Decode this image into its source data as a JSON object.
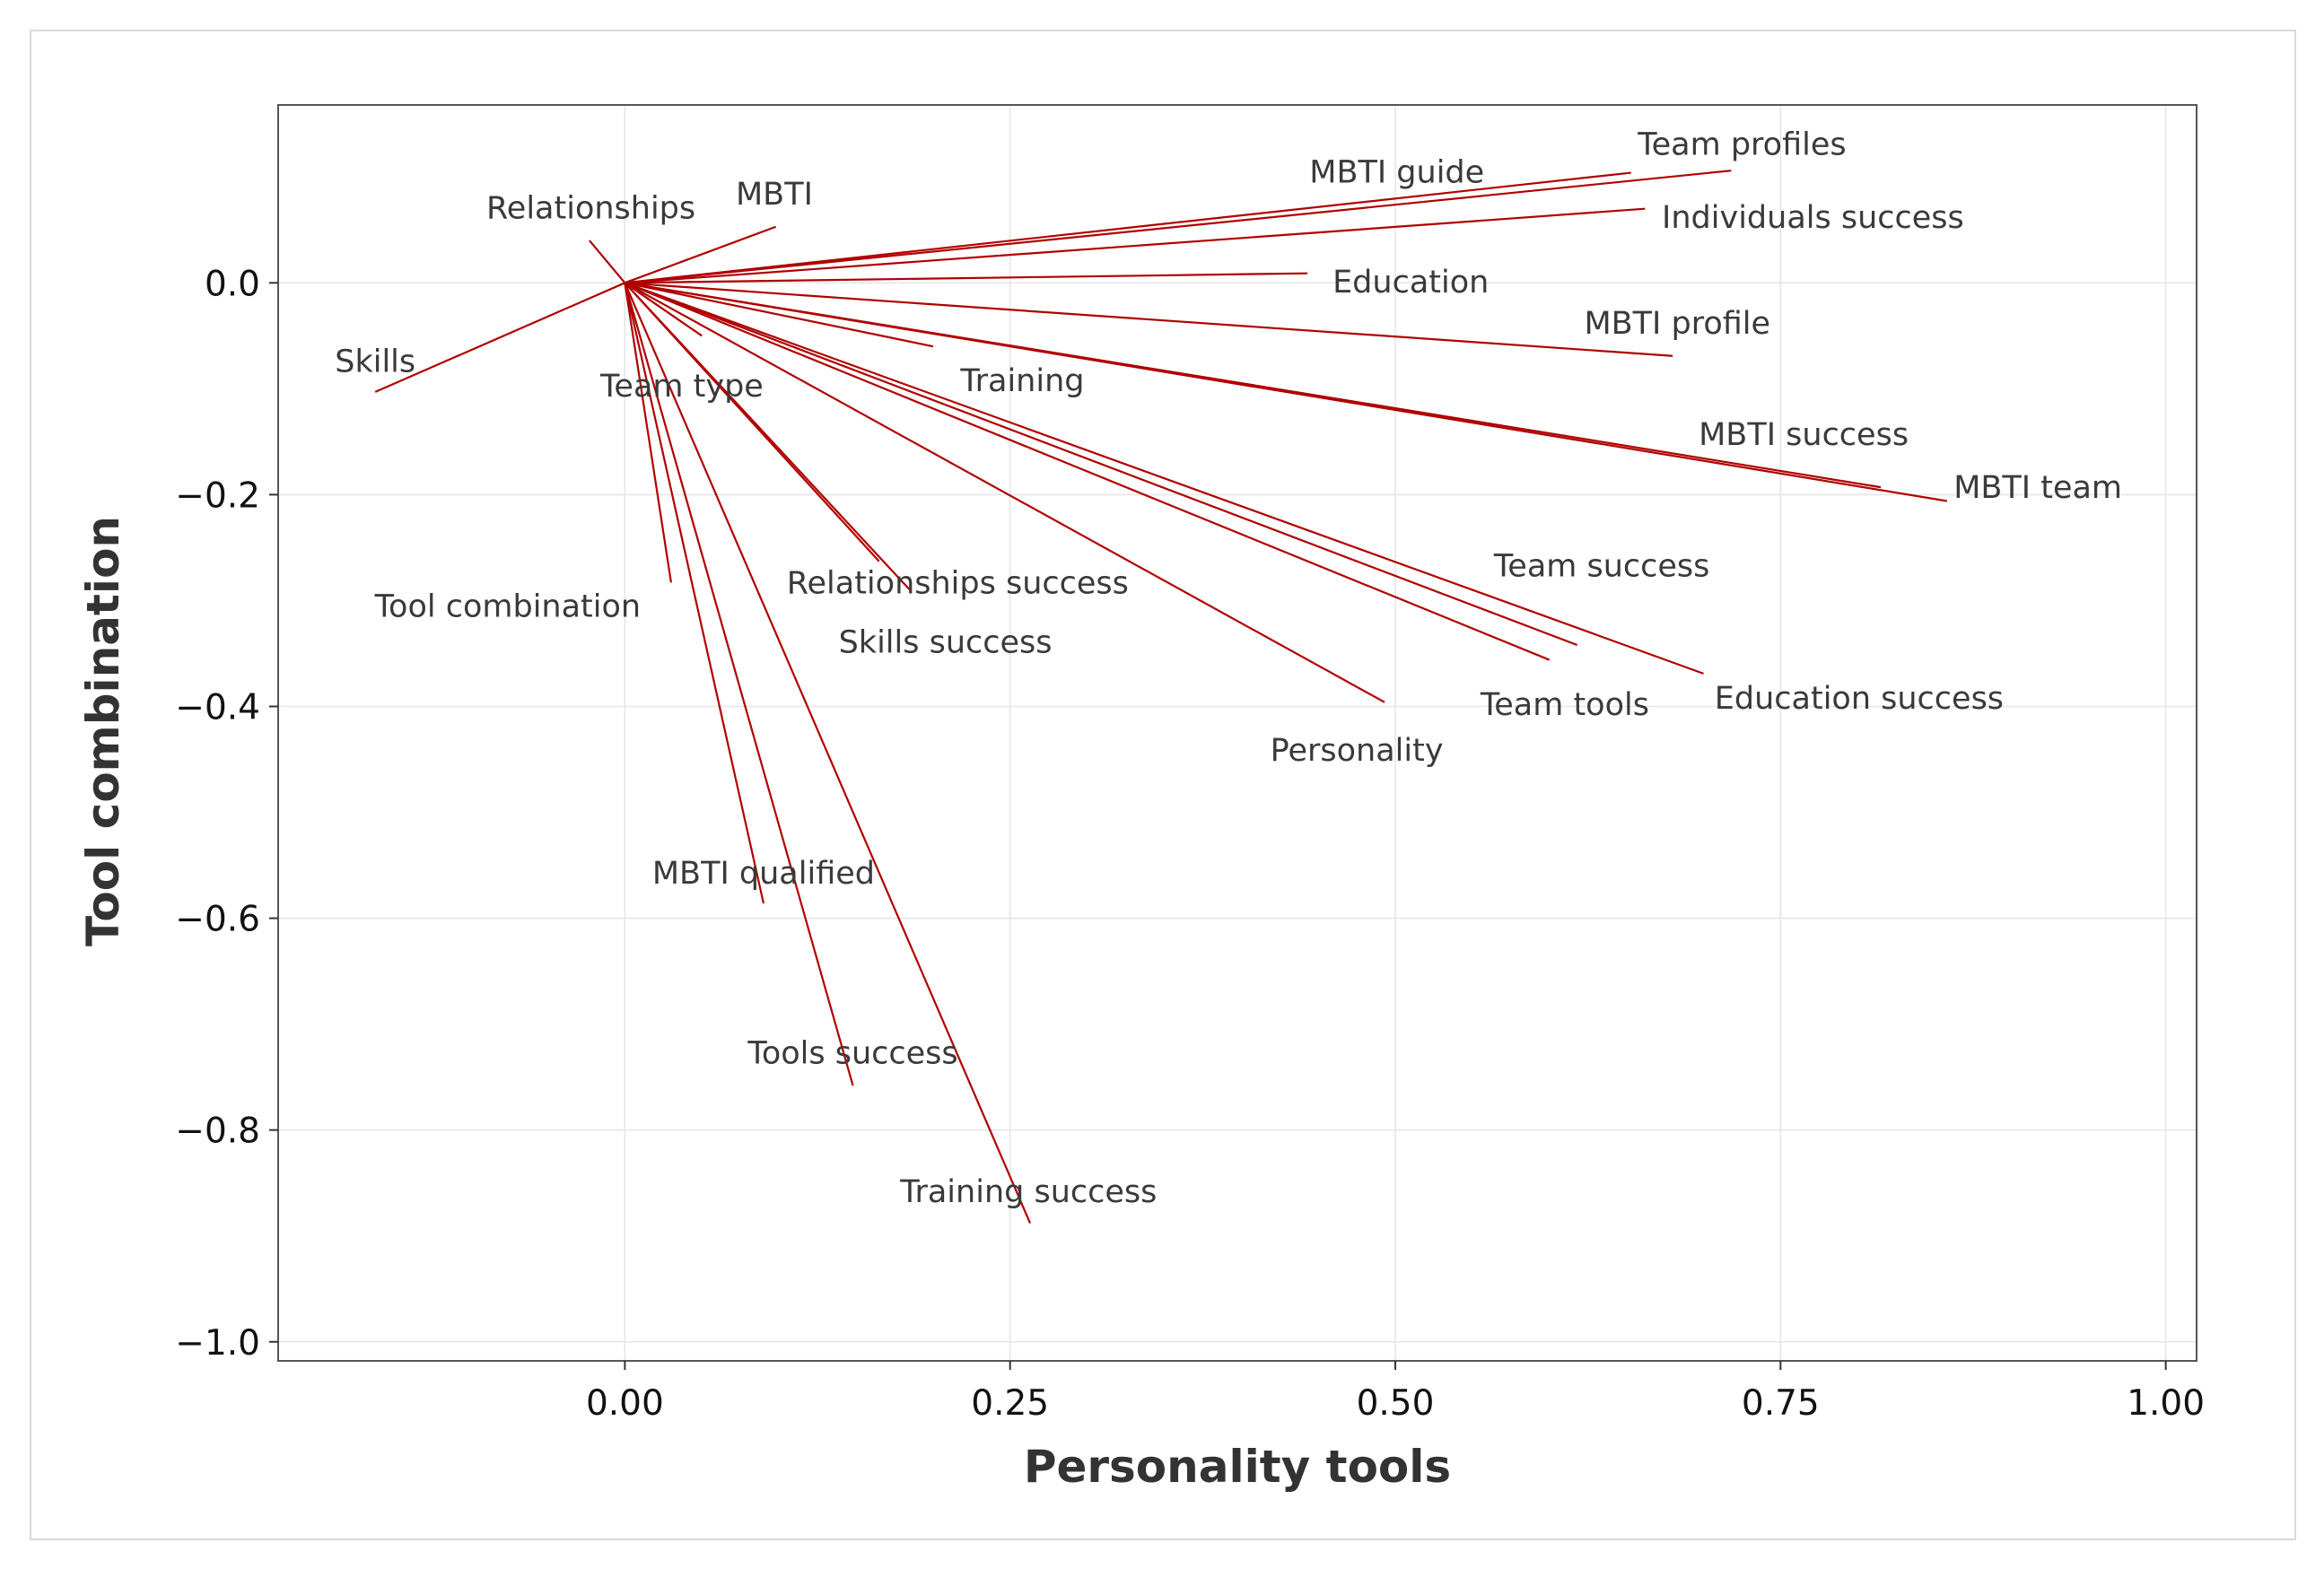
{
  "chart_data": {
    "type": "scatter",
    "subtype": "biplot-loading-vectors",
    "title": "",
    "xlabel": "Personality tools",
    "ylabel": "Tool combination",
    "xlim": [
      -0.225,
      1.02
    ],
    "ylim": [
      -1.018,
      0.168
    ],
    "x_ticks": [
      0.0,
      0.25,
      0.5,
      0.75,
      1.0
    ],
    "x_tick_labels": [
      "0.00",
      "0.25",
      "0.50",
      "0.75",
      "1.00"
    ],
    "y_ticks": [
      0.0,
      -0.2,
      -0.4,
      -0.6,
      -0.8,
      -1.0
    ],
    "y_tick_labels": [
      "0.0",
      "−0.2",
      "−0.4",
      "−0.6",
      "−0.8",
      "−1.0"
    ],
    "grid": true,
    "line_color": "#b00000",
    "vectors": [
      {
        "name": "Team profiles",
        "x": 0.718,
        "y": 0.106,
        "lx": 0.725,
        "ly": 0.131
      },
      {
        "name": "MBTI guide",
        "x": 0.653,
        "y": 0.104,
        "lx": 0.501,
        "ly": 0.105
      },
      {
        "name": "Individuals success",
        "x": 0.662,
        "y": 0.07,
        "lx": 0.771,
        "ly": 0.062
      },
      {
        "name": "MBTI",
        "x": 0.098,
        "y": 0.053,
        "lx": 0.097,
        "ly": 0.084
      },
      {
        "name": "Relationships",
        "x": -0.023,
        "y": 0.04,
        "lx": -0.022,
        "ly": 0.071
      },
      {
        "name": "Education",
        "x": 0.443,
        "y": 0.009,
        "lx": 0.51,
        "ly": 0.001
      },
      {
        "name": "Skills",
        "x": -0.162,
        "y": -0.103,
        "lx": -0.162,
        "ly": -0.074
      },
      {
        "name": "MBTI profile",
        "x": 0.68,
        "y": -0.069,
        "lx": 0.683,
        "ly": -0.038
      },
      {
        "name": "Team type",
        "x": 0.05,
        "y": -0.05,
        "lx": 0.037,
        "ly": -0.097
      },
      {
        "name": "Training",
        "x": 0.2,
        "y": -0.06,
        "lx": 0.258,
        "ly": -0.092
      },
      {
        "name": "MBTI success",
        "x": 0.815,
        "y": -0.193,
        "lx": 0.765,
        "ly": -0.143
      },
      {
        "name": "MBTI team",
        "x": 0.858,
        "y": -0.206,
        "lx": 0.917,
        "ly": -0.193
      },
      {
        "name": "Tool combination",
        "x": 0.03,
        "y": -0.283,
        "lx": -0.076,
        "ly": -0.305
      },
      {
        "name": "Relationships success",
        "x": 0.165,
        "y": -0.263,
        "lx": 0.216,
        "ly": -0.283
      },
      {
        "name": "Skills success",
        "x": 0.185,
        "y": -0.29,
        "lx": 0.208,
        "ly": -0.339
      },
      {
        "name": "Team success",
        "x": 0.618,
        "y": -0.342,
        "lx": 0.634,
        "ly": -0.267
      },
      {
        "name": "Team tools",
        "x": 0.6,
        "y": -0.356,
        "lx": 0.61,
        "ly": -0.398
      },
      {
        "name": "Education success",
        "x": 0.7,
        "y": -0.369,
        "lx": 0.801,
        "ly": -0.392
      },
      {
        "name": "Personality",
        "x": 0.493,
        "y": -0.396,
        "lx": 0.475,
        "ly": -0.441
      },
      {
        "name": "MBTI qualified",
        "x": 0.09,
        "y": -0.586,
        "lx": 0.09,
        "ly": -0.557
      },
      {
        "name": "Tools success",
        "x": 0.148,
        "y": -0.758,
        "lx": 0.148,
        "ly": -0.727
      },
      {
        "name": "Training success",
        "x": 0.263,
        "y": -0.888,
        "lx": 0.262,
        "ly": -0.858
      }
    ]
  }
}
